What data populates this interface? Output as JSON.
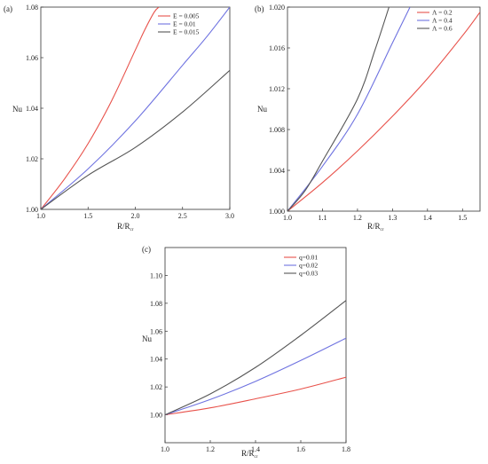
{
  "chart_data": [
    {
      "panel": "(a)",
      "type": "line",
      "xlabel": "R/R",
      "xlabel_sub": "cr",
      "ylabel": "Nu",
      "xlim": [
        1.0,
        3.0
      ],
      "ylim": [
        1.0,
        1.08
      ],
      "xticks": [
        "1.0",
        "1.5",
        "2.0",
        "2.5",
        "3.0"
      ],
      "yticks": [
        "1.00",
        "1.02",
        "1.04",
        "1.06",
        "1.08"
      ],
      "legend_position": "top-right",
      "series": [
        {
          "name": "E = 0.005",
          "color": "#e8514a",
          "x": [
            1.0,
            1.25,
            1.5,
            1.75,
            2.0,
            2.1,
            2.2,
            2.25
          ],
          "y": [
            1.0,
            1.012,
            1.026,
            1.043,
            1.063,
            1.071,
            1.078,
            1.08
          ]
        },
        {
          "name": "E = 0.01",
          "color": "#6e72e0",
          "x": [
            1.0,
            1.5,
            2.0,
            2.5,
            2.75,
            3.0
          ],
          "y": [
            1.0,
            1.016,
            1.035,
            1.057,
            1.068,
            1.08
          ]
        },
        {
          "name": "E = 0.015",
          "color": "#555555",
          "x": [
            1.0,
            1.5,
            2.0,
            2.5,
            3.0
          ],
          "y": [
            1.0,
            1.0135,
            1.0245,
            1.0385,
            1.055
          ]
        }
      ]
    },
    {
      "panel": "(b)",
      "type": "line",
      "xlabel": "R/R",
      "xlabel_sub": "cr",
      "ylabel": "Nu",
      "xlim": [
        1.0,
        1.55
      ],
      "ylim": [
        1.0,
        1.02
      ],
      "xticks": [
        "1.0",
        "1.1",
        "1.2",
        "1.3",
        "1.4",
        "1.5"
      ],
      "yticks": [
        "1.000",
        "1.004",
        "1.008",
        "1.012",
        "1.016",
        "1.020"
      ],
      "legend_position": "top-right",
      "series": [
        {
          "name": "Λ = 0.2",
          "color": "#e8514a",
          "x": [
            1.0,
            1.1,
            1.2,
            1.3,
            1.4,
            1.5,
            1.55
          ],
          "y": [
            1.0,
            1.0028,
            1.0059,
            1.0093,
            1.013,
            1.0172,
            1.0195
          ]
        },
        {
          "name": "Λ = 0.4",
          "color": "#6e72e0",
          "x": [
            1.0,
            1.1,
            1.2,
            1.3,
            1.35
          ],
          "y": [
            1.0,
            1.0044,
            1.0095,
            1.0165,
            1.02
          ]
        },
        {
          "name": "Λ = 0.6",
          "color": "#555555",
          "x": [
            1.0,
            1.05,
            1.1,
            1.2,
            1.25,
            1.29
          ],
          "y": [
            1.0,
            1.002,
            1.0049,
            1.011,
            1.0158,
            1.02
          ]
        }
      ]
    },
    {
      "panel": "(c)",
      "type": "line",
      "xlabel": "R/R",
      "xlabel_sub": "cr",
      "ylabel": "Nu",
      "xlim": [
        1.0,
        1.8
      ],
      "ylim": [
        0.98,
        1.12
      ],
      "xticks": [
        "1.0",
        "1.2",
        "1.4",
        "1.6",
        "1.8"
      ],
      "yticks": [
        "1.00",
        "1.02",
        "1.04",
        "1.06",
        "1.08",
        "1.10"
      ],
      "legend_position": "top-left",
      "series": [
        {
          "name": "q=0.01",
          "color": "#e8514a",
          "x": [
            1.0,
            1.2,
            1.4,
            1.6,
            1.8
          ],
          "y": [
            1.0,
            1.005,
            1.0115,
            1.0185,
            1.027
          ]
        },
        {
          "name": "q=0.02",
          "color": "#6e72e0",
          "x": [
            1.0,
            1.2,
            1.4,
            1.6,
            1.8
          ],
          "y": [
            1.0,
            1.011,
            1.024,
            1.039,
            1.055
          ]
        },
        {
          "name": "q=0.03",
          "color": "#555555",
          "x": [
            1.0,
            1.2,
            1.4,
            1.6,
            1.8
          ],
          "y": [
            1.0,
            1.015,
            1.034,
            1.057,
            1.082
          ]
        }
      ]
    }
  ]
}
